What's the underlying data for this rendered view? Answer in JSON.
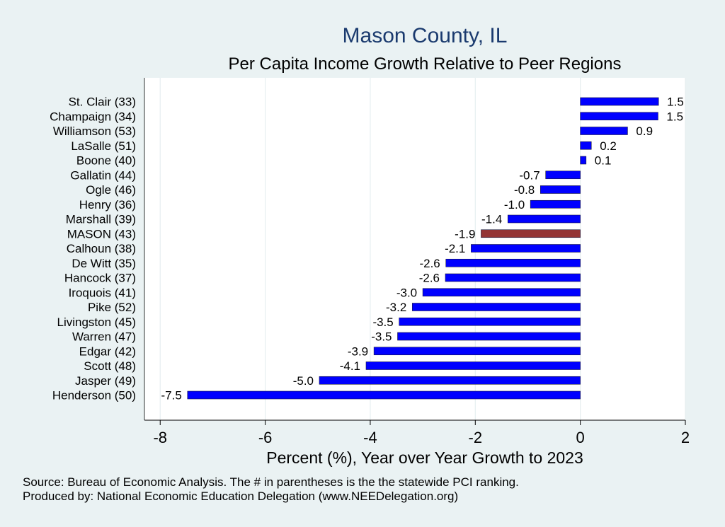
{
  "colors": {
    "background": "#eaf2f3",
    "plot_background": "#ffffff",
    "bar": "#0000ff",
    "highlight_bar": "#943434",
    "gridline": "#e6eef0",
    "title": "#1a3a6e"
  },
  "footer": {
    "source": "Source: Bureau of Economic Analysis. The # in parentheses is the the statewide PCI ranking.",
    "produced_by": "Produced by: National Economic Education Delegation (www.NEEDelegation.org)"
  },
  "chart_data": {
    "type": "bar",
    "orientation": "horizontal",
    "title": "Mason County, IL",
    "subtitle": "Per Capita Income Growth Relative to Peer Regions",
    "xlabel": "Percent (%), Year over Year Growth to 2023",
    "ylabel": "",
    "xlim": [
      -8.3,
      2.0
    ],
    "xticks": [
      -8,
      -6,
      -4,
      -2,
      0,
      2
    ],
    "grid": true,
    "highlight": "MASON (43)",
    "categories": [
      "St. Clair (33)",
      "Champaign (34)",
      "Williamson (53)",
      "LaSalle (51)",
      "Boone (40)",
      "Gallatin (44)",
      "Ogle (46)",
      "Henry (36)",
      "Marshall (39)",
      "MASON (43)",
      "Calhoun (38)",
      "De Witt (35)",
      "Hancock (37)",
      "Iroquois (41)",
      "Pike (52)",
      "Livingston (45)",
      "Warren (47)",
      "Edgar (42)",
      "Scott (48)",
      "Jasper (49)",
      "Henderson (50)"
    ],
    "values": [
      1.49,
      1.48,
      0.9,
      0.21,
      0.11,
      -0.66,
      -0.76,
      -0.95,
      -1.38,
      -1.89,
      -2.08,
      -2.56,
      -2.57,
      -3.0,
      -3.2,
      -3.45,
      -3.48,
      -3.93,
      -4.08,
      -4.97,
      -7.48
    ],
    "labels": [
      "1.5",
      "1.5",
      "0.9",
      "0.2",
      "0.1",
      "-0.7",
      "-0.8",
      "-1.0",
      "-1.4",
      "-1.9",
      "-2.1",
      "-2.6",
      "-2.6",
      "-3.0",
      "-3.2",
      "-3.5",
      "-3.5",
      "-3.9",
      "-4.1",
      "-5.0",
      "-7.5"
    ]
  }
}
